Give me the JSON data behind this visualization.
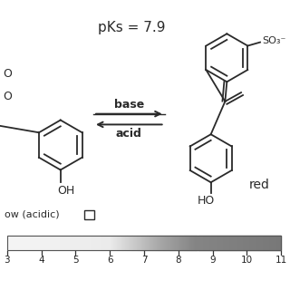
{
  "pks_text": "pKs = 7.9",
  "base_text": "base",
  "acid_text": "acid",
  "yellow_label": "ow (acidic)",
  "red_label": "red",
  "so3_label": "SO₃",
  "ho_label": "HO",
  "oh_label": "OH",
  "ph_ticks": [
    3,
    4,
    5,
    6,
    7,
    8,
    9,
    10,
    11
  ],
  "bg_color": "#ffffff",
  "line_color": "#2a2a2a"
}
